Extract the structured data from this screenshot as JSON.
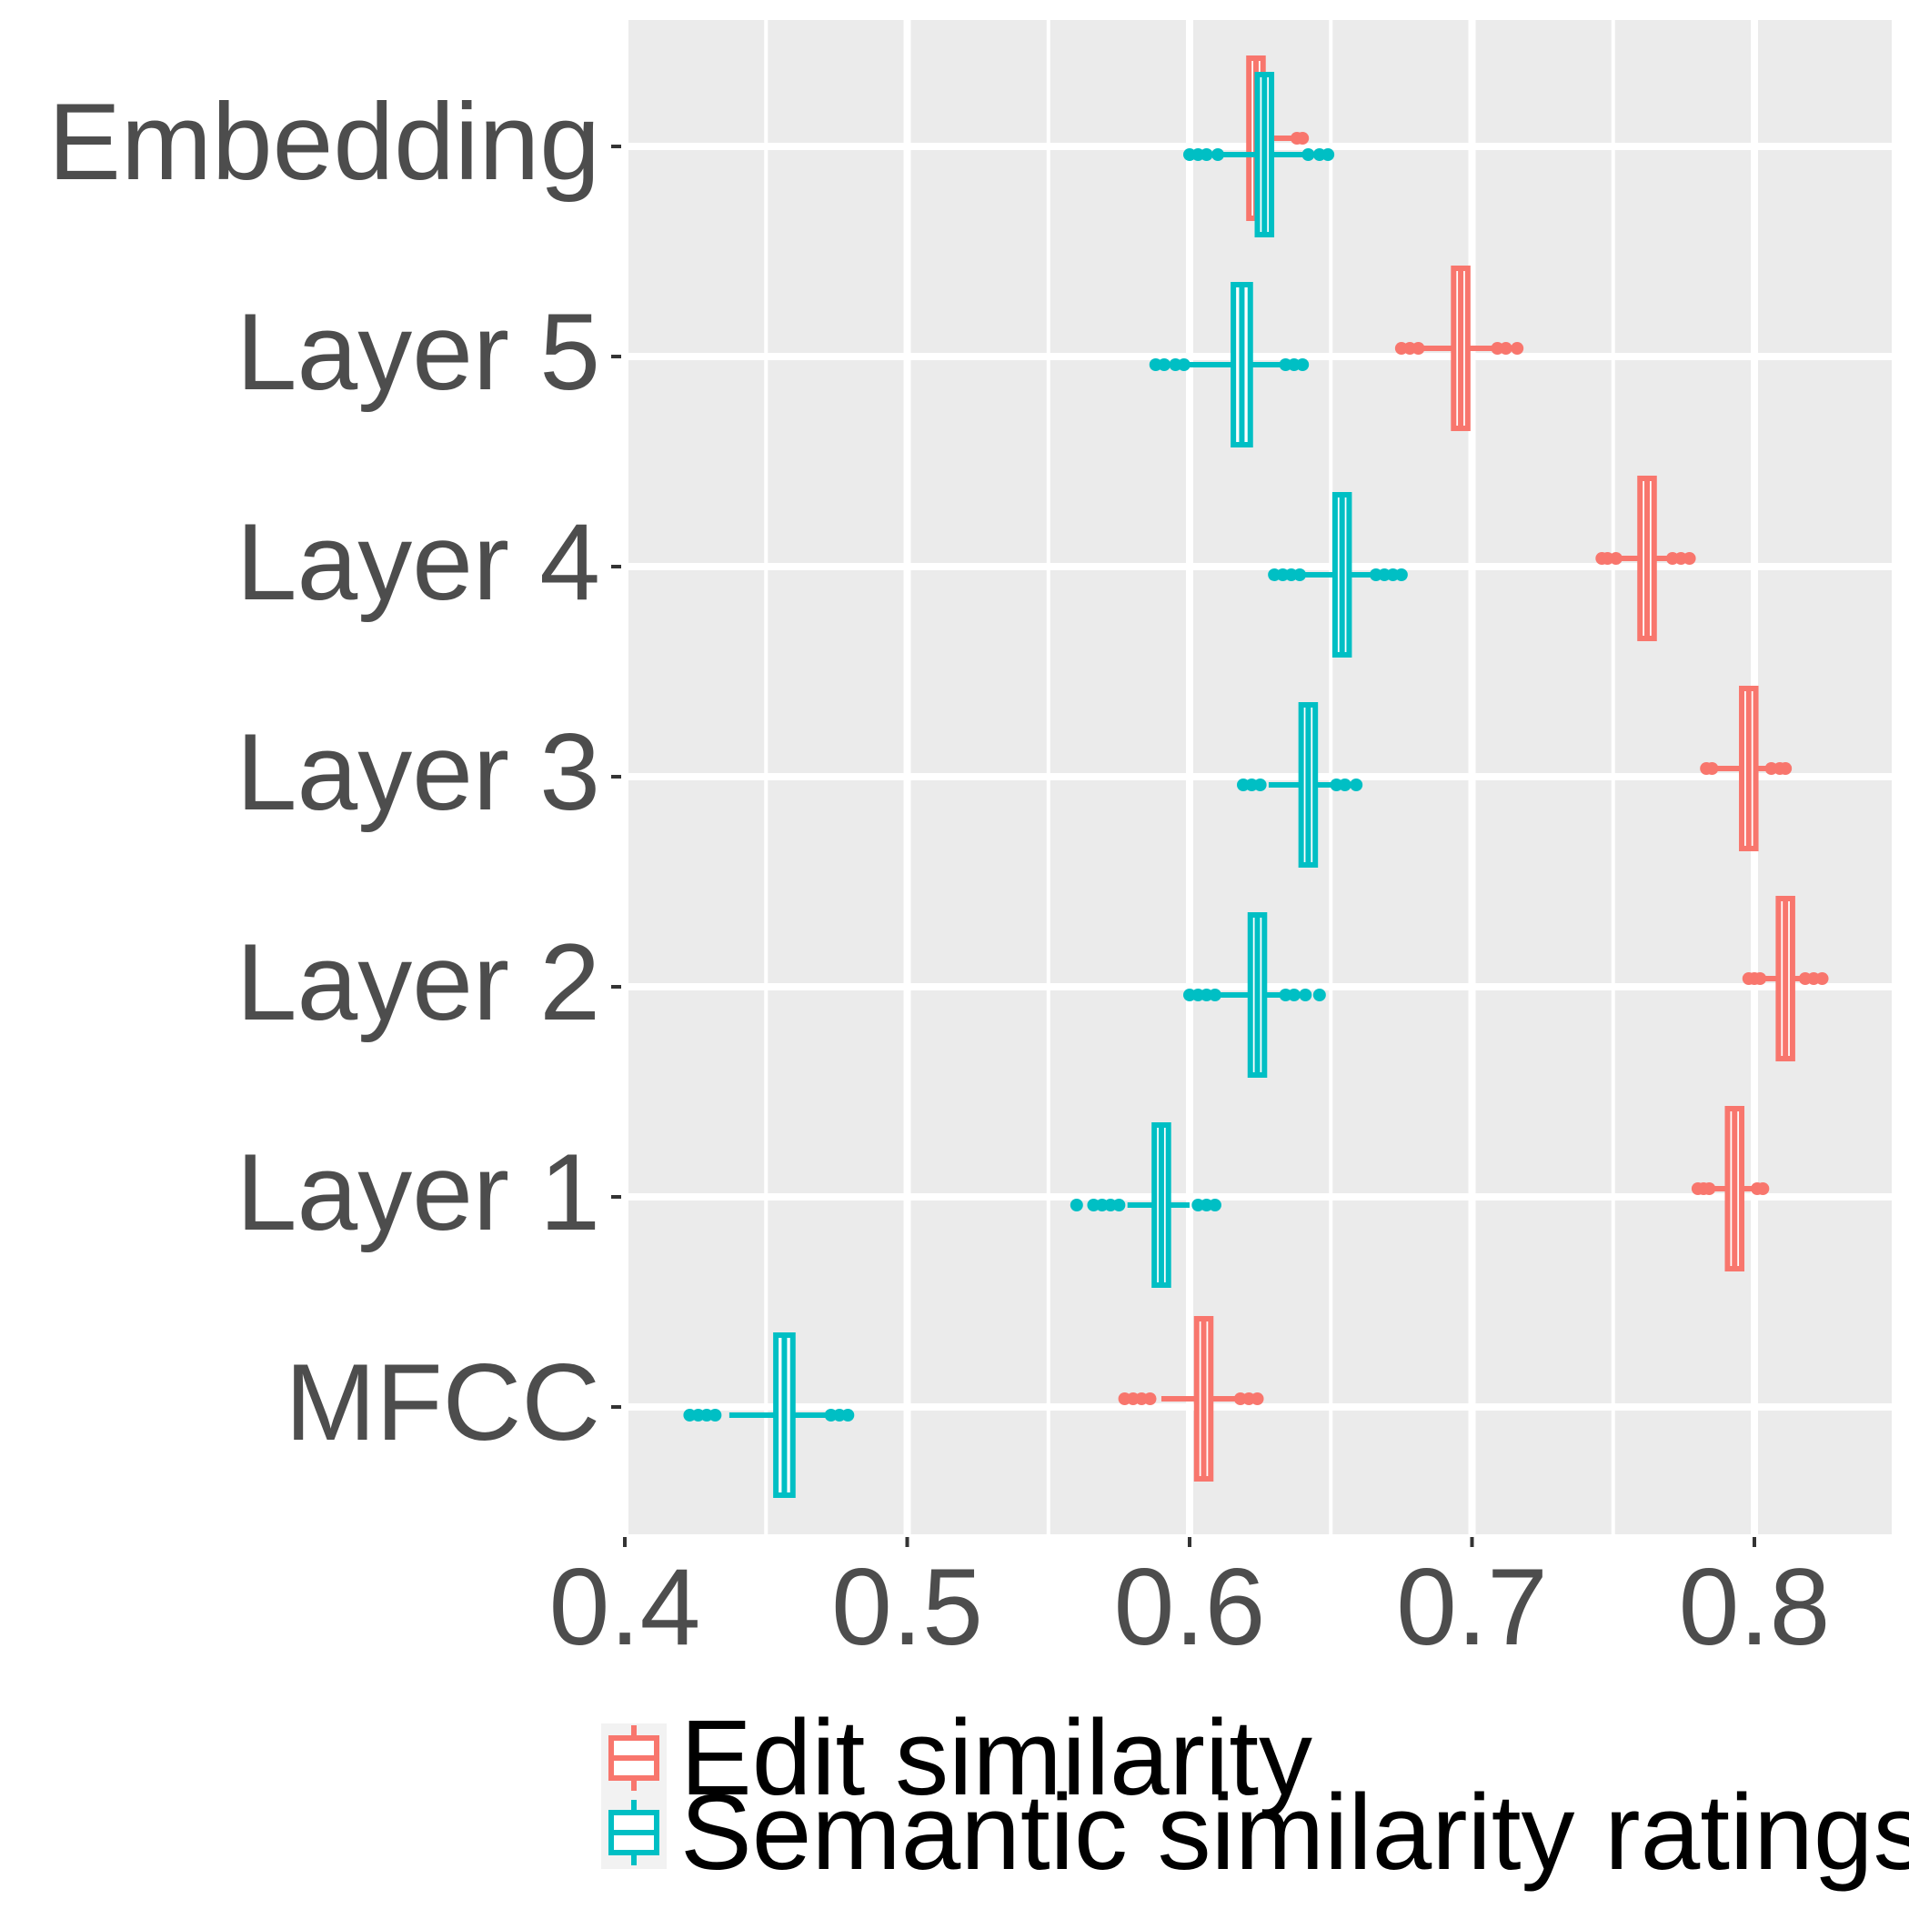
{
  "chart_data": {
    "type": "boxplot",
    "orientation": "horizontal",
    "categories": [
      "Embedding",
      "Layer 5",
      "Layer 4",
      "Layer 3",
      "Layer 2",
      "Layer 1",
      "MFCC"
    ],
    "xlim": [
      0.4,
      0.85
    ],
    "xticks": [
      0.4,
      0.5,
      0.6,
      0.7,
      0.8
    ],
    "xtick_labels": [
      "0.4",
      "0.5",
      "0.6",
      "0.7",
      "0.8"
    ],
    "grid": true,
    "legend_position": "bottom",
    "series": [
      {
        "name": "Edit similarity",
        "color": "#F8766D",
        "boxes": [
          {
            "category": "Embedding",
            "q1": 0.621,
            "median": 0.6235,
            "q3": 0.626,
            "whisker_low": 0.621,
            "whisker_high": 0.64,
            "outliers_low": [],
            "outliers_high": [
              0.638,
              0.64
            ]
          },
          {
            "category": "Layer 5",
            "q1": 0.6935,
            "median": 0.696,
            "q3": 0.6985,
            "whisker_low": 0.68,
            "whisker_high": 0.711,
            "outliers_low": [
              0.675,
              0.678,
              0.681
            ],
            "outliers_high": [
              0.709,
              0.712,
              0.716
            ]
          },
          {
            "category": "Layer 4",
            "q1": 0.7595,
            "median": 0.762,
            "q3": 0.7645,
            "whisker_low": 0.749,
            "whisker_high": 0.772,
            "outliers_low": [
              0.746,
              0.748,
              0.751
            ],
            "outliers_high": [
              0.771,
              0.774,
              0.777
            ]
          },
          {
            "category": "Layer 3",
            "q1": 0.7955,
            "median": 0.798,
            "q3": 0.8005,
            "whisker_low": 0.786,
            "whisker_high": 0.806,
            "outliers_low": [
              0.783,
              0.785
            ],
            "outliers_high": [
              0.806,
              0.809,
              0.811
            ]
          },
          {
            "category": "Layer 2",
            "q1": 0.8085,
            "median": 0.811,
            "q3": 0.8135,
            "whisker_low": 0.801,
            "whisker_high": 0.818,
            "outliers_low": [
              0.798,
              0.8,
              0.802
            ],
            "outliers_high": [
              0.818,
              0.821,
              0.824
            ]
          },
          {
            "category": "Layer 1",
            "q1": 0.7905,
            "median": 0.793,
            "q3": 0.7955,
            "whisker_low": 0.783,
            "whisker_high": 0.8,
            "outliers_low": [
              0.78,
              0.782,
              0.784
            ],
            "outliers_high": [
              0.801,
              0.803
            ]
          },
          {
            "category": "MFCC",
            "q1": 0.6025,
            "median": 0.605,
            "q3": 0.6075,
            "whisker_low": 0.59,
            "whisker_high": 0.618,
            "outliers_low": [
              0.577,
              0.58,
              0.583,
              0.586
            ],
            "outliers_high": [
              0.618,
              0.621,
              0.624
            ]
          }
        ]
      },
      {
        "name": "Semantic similarity ratings",
        "color": "#00BFC4",
        "boxes": [
          {
            "category": "Embedding",
            "q1": 0.624,
            "median": 0.6265,
            "q3": 0.629,
            "whisker_low": 0.603,
            "whisker_high": 0.642,
            "outliers_low": [
              0.6,
              0.603,
              0.606,
              0.61
            ],
            "outliers_high": [
              0.642,
              0.646,
              0.649
            ]
          },
          {
            "category": "Layer 5",
            "q1": 0.6155,
            "median": 0.6185,
            "q3": 0.6215,
            "whisker_low": 0.6,
            "whisker_high": 0.635,
            "outliers_low": [
              0.588,
              0.591,
              0.595,
              0.598
            ],
            "outliers_high": [
              0.634,
              0.637,
              0.64
            ]
          },
          {
            "category": "Layer 4",
            "q1": 0.6515,
            "median": 0.654,
            "q3": 0.6565,
            "whisker_low": 0.64,
            "whisker_high": 0.666,
            "outliers_low": [
              0.63,
              0.633,
              0.636,
              0.639
            ],
            "outliers_high": [
              0.666,
              0.669,
              0.672,
              0.675
            ]
          },
          {
            "category": "Layer 3",
            "q1": 0.6395,
            "median": 0.642,
            "q3": 0.6445,
            "whisker_low": 0.628,
            "whisker_high": 0.652,
            "outliers_low": [
              0.619,
              0.622,
              0.625
            ],
            "outliers_high": [
              0.652,
              0.655,
              0.659
            ]
          },
          {
            "category": "Layer 2",
            "q1": 0.6215,
            "median": 0.624,
            "q3": 0.6265,
            "whisker_low": 0.611,
            "whisker_high": 0.632,
            "outliers_low": [
              0.6,
              0.603,
              0.606,
              0.609
            ],
            "outliers_high": [
              0.634,
              0.637,
              0.641,
              0.646
            ]
          },
          {
            "category": "Layer 1",
            "q1": 0.5875,
            "median": 0.59,
            "q3": 0.5925,
            "whisker_low": 0.578,
            "whisker_high": 0.6,
            "outliers_low": [
              0.56,
              0.566,
              0.569,
              0.572,
              0.575
            ],
            "outliers_high": [
              0.603,
              0.606,
              0.609
            ]
          },
          {
            "category": "MFCC",
            "q1": 0.4535,
            "median": 0.4565,
            "q3": 0.4595,
            "whisker_low": 0.437,
            "whisker_high": 0.472,
            "outliers_low": [
              0.423,
              0.426,
              0.429,
              0.432
            ],
            "outliers_high": [
              0.473,
              0.476,
              0.479
            ]
          }
        ]
      }
    ],
    "legend": [
      {
        "label": "Edit similarity",
        "color": "#F8766D"
      },
      {
        "label": "Semantic similarity ratings",
        "color": "#00BFC4"
      }
    ]
  }
}
